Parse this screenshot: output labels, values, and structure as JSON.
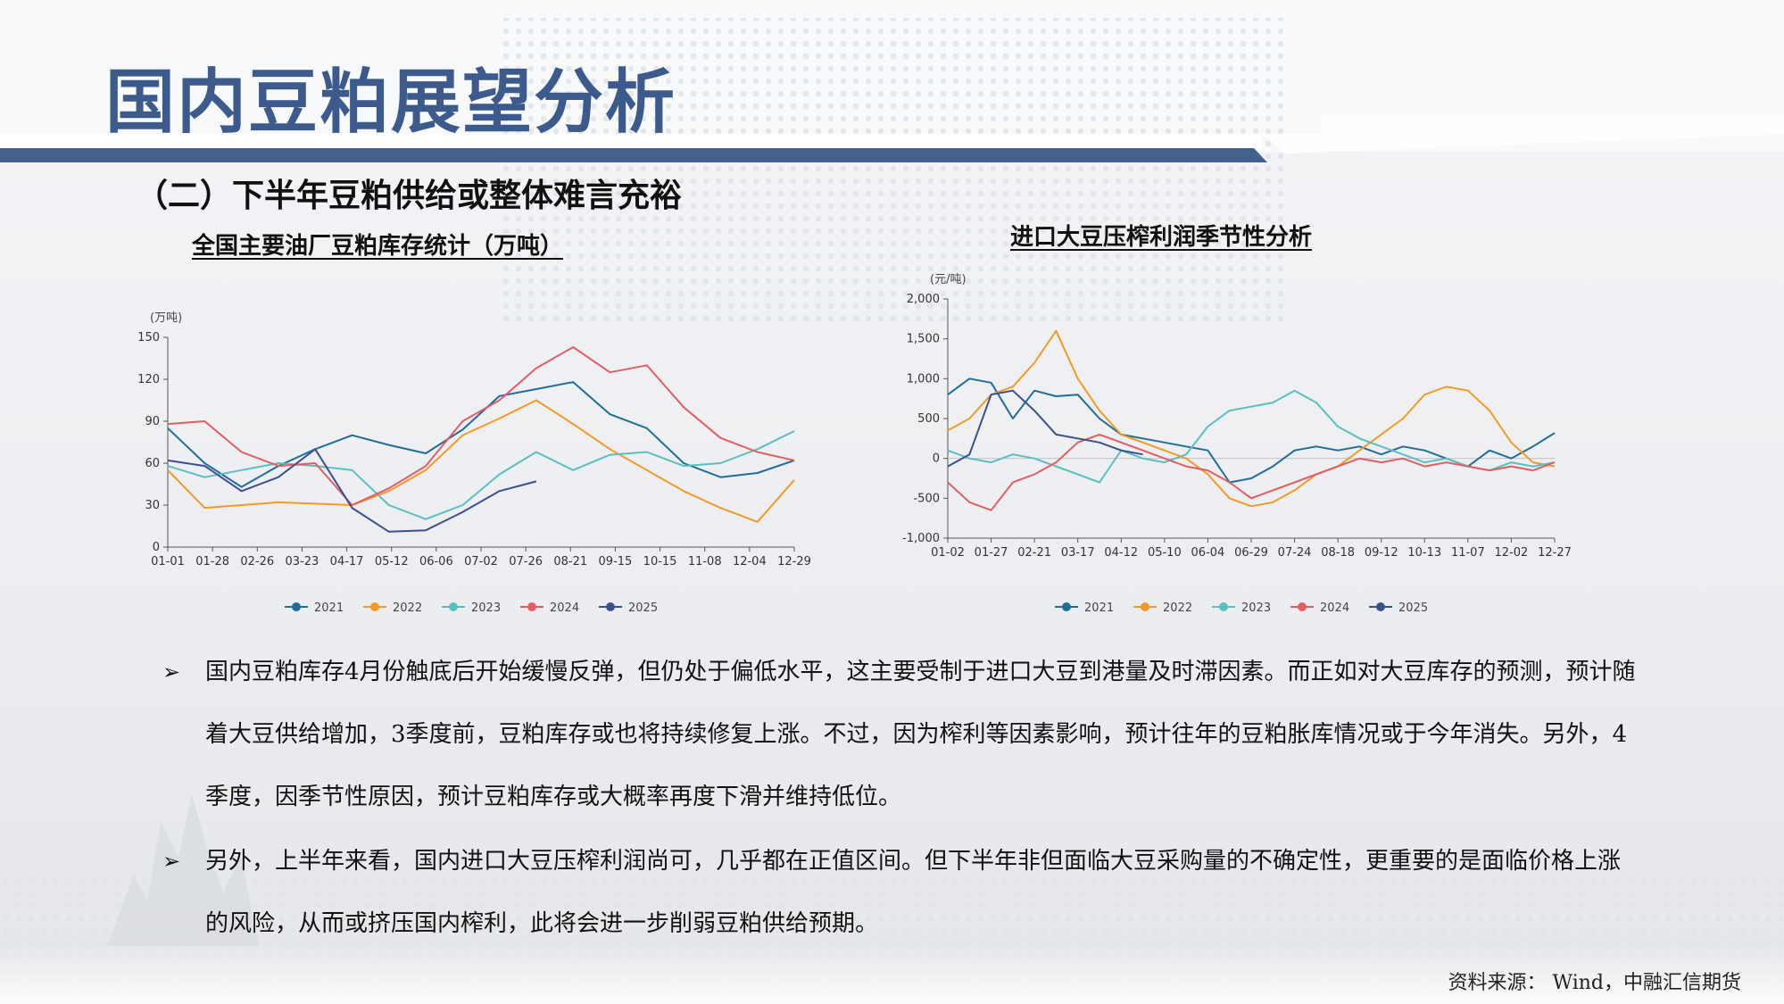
{
  "page": {
    "title": "国内豆粕展望分析",
    "subtitle": "（二）下半年豆粕供给或整体难言充裕",
    "source": "资料来源： Wind，中融汇信期货"
  },
  "colors": {
    "title": "#3d5a8c",
    "band": "#44608f",
    "s2021": "#1f6d98",
    "s2022": "#f39a25",
    "s2023": "#5bbfc0",
    "s2024": "#e35d62",
    "s2025": "#3c4f8f"
  },
  "bullets": [
    "国内豆粕库存4月份触底后开始缓慢反弹，但仍处于偏低水平，这主要受制于进口大豆到港量及时滞因素。而正如对大豆库存的预测，预计随着大豆供给增加，3季度前，豆粕库存或也将持续修复上涨。不过，因为榨利等因素影响，预计往年的豆粕胀库情况或于今年消失。另外，4季度，因季节性原因，预计豆粕库存或大概率再度下滑并维持低位。",
    "另外，上半年来看，国内进口大豆压榨利润尚可，几乎都在正值区间。但下半年非但面临大豆采购量的不确定性，更重要的是面临价格上涨的风险，从而或挤压国内榨利，此将会进一步削弱豆粕供给预期。"
  ],
  "chart_data": [
    {
      "type": "line",
      "title": "全国主要油厂豆粕库存统计（万吨）",
      "ylabel": "(万吨)",
      "ylim": [
        0,
        150
      ],
      "yticks": [
        0,
        30,
        60,
        90,
        120,
        150
      ],
      "xticks": [
        "01-01",
        "01-28",
        "02-26",
        "03-23",
        "04-17",
        "05-12",
        "06-06",
        "07-02",
        "07-26",
        "08-21",
        "09-15",
        "10-15",
        "11-08",
        "12-04",
        "12-29"
      ],
      "x": [
        1,
        4,
        7,
        10,
        13,
        16,
        19,
        22,
        25,
        28,
        31,
        34,
        37,
        40,
        43,
        46,
        49,
        52
      ],
      "series": [
        {
          "name": "2021",
          "values": [
            85,
            60,
            43,
            58,
            70,
            80,
            73,
            67,
            84,
            108,
            113,
            118,
            95,
            85,
            60,
            50,
            53,
            62
          ]
        },
        {
          "name": "2022",
          "values": [
            55,
            28,
            30,
            32,
            31,
            30,
            40,
            55,
            80,
            92,
            105,
            88,
            70,
            55,
            40,
            28,
            18,
            48
          ]
        },
        {
          "name": "2023",
          "values": [
            58,
            50,
            55,
            60,
            58,
            55,
            30,
            20,
            30,
            52,
            68,
            55,
            66,
            68,
            58,
            60,
            70,
            83
          ]
        },
        {
          "name": "2024",
          "values": [
            88,
            90,
            68,
            58,
            60,
            30,
            42,
            58,
            90,
            105,
            128,
            143,
            125,
            130,
            100,
            78,
            68,
            62
          ]
        },
        {
          "name": "2025",
          "values": [
            62,
            58,
            40,
            50,
            70,
            28,
            11,
            12,
            25,
            40,
            47,
            null,
            null,
            null,
            null,
            null,
            null,
            null
          ]
        }
      ]
    },
    {
      "type": "line",
      "title": "进口大豆压榨利润季节性分析",
      "ylabel": "(元/吨)",
      "ylim": [
        -1000,
        2000
      ],
      "yticks": [
        -1000,
        -500,
        0,
        500,
        1000,
        1500,
        2000
      ],
      "xticks": [
        "01-02",
        "01-27",
        "02-21",
        "03-17",
        "04-12",
        "05-10",
        "06-04",
        "06-29",
        "07-24",
        "08-18",
        "09-12",
        "10-13",
        "11-07",
        "12-02",
        "12-27"
      ],
      "x": [
        0,
        0.5,
        1,
        1.5,
        2,
        2.5,
        3,
        3.5,
        4,
        4.5,
        5,
        5.5,
        6,
        6.5,
        7,
        7.5,
        8,
        8.5,
        9,
        9.5,
        10,
        10.5,
        11,
        11.5,
        12,
        12.5,
        13,
        13.5,
        14
      ],
      "series": [
        {
          "name": "2021",
          "values": [
            800,
            1000,
            950,
            500,
            850,
            780,
            800,
            500,
            300,
            250,
            200,
            150,
            100,
            -300,
            -250,
            -100,
            100,
            150,
            100,
            150,
            50,
            150,
            100,
            0,
            -100,
            100,
            0,
            150,
            320
          ]
        },
        {
          "name": "2022",
          "values": [
            350,
            500,
            800,
            900,
            1200,
            1600,
            1000,
            600,
            300,
            200,
            100,
            0,
            -200,
            -500,
            -600,
            -550,
            -400,
            -200,
            -100,
            100,
            300,
            500,
            800,
            900,
            850,
            600,
            200,
            -50,
            -100
          ]
        },
        {
          "name": "2023",
          "values": [
            100,
            0,
            -50,
            50,
            0,
            -100,
            -200,
            -300,
            100,
            0,
            -50,
            50,
            400,
            600,
            650,
            700,
            850,
            700,
            400,
            250,
            150,
            50,
            -50,
            0,
            -100,
            -150,
            -50,
            -100,
            -50
          ]
        },
        {
          "name": "2024",
          "values": [
            -300,
            -550,
            -650,
            -300,
            -200,
            -50,
            200,
            300,
            200,
            100,
            0,
            -100,
            -150,
            -300,
            -500,
            -400,
            -300,
            -200,
            -100,
            0,
            -50,
            0,
            -100,
            -50,
            -100,
            -150,
            -100,
            -150,
            -50
          ]
        },
        {
          "name": "2025",
          "values": [
            -100,
            50,
            800,
            850,
            600,
            300,
            250,
            200,
            100,
            50,
            null,
            null,
            null,
            null,
            null,
            null,
            null,
            null,
            null,
            null,
            null,
            null,
            null,
            null,
            null,
            null,
            null,
            null,
            null
          ]
        }
      ]
    }
  ]
}
